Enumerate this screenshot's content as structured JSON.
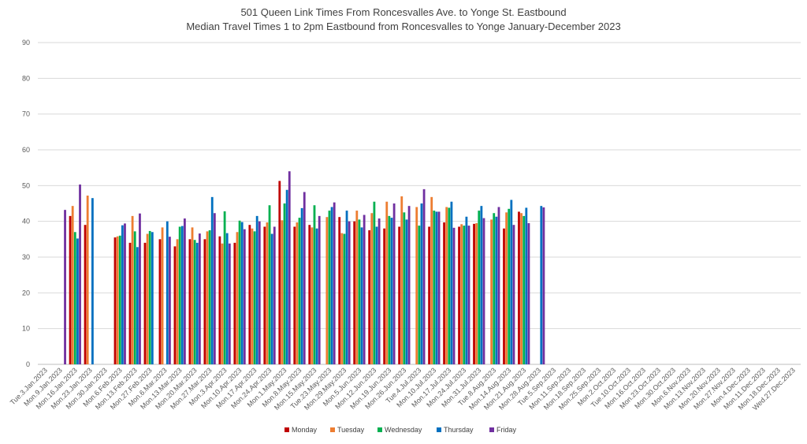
{
  "chart_data": {
    "type": "bar",
    "title": "501 Queen Link Times From Roncesvalles Ave. to Yonge St. Eastbound",
    "subtitle": "Median Travel Times 1 to 2pm Eastbound from Roncesvalles to Yonge January-December 2023",
    "xlabel": "",
    "ylabel": "",
    "ylim": [
      0,
      90
    ],
    "yticks": [
      0,
      10,
      20,
      30,
      40,
      50,
      60,
      70,
      80,
      90
    ],
    "grid": true,
    "legend_position": "bottom",
    "categories": [
      "Tue.3.Jan.2023",
      "Mon.9.Jan.2023",
      "Mon.16.Jan.2023",
      "Mon.23.Jan.2023",
      "Mon.30.Jan.2023",
      "Mon.6.Feb.2023",
      "Mon.13.Feb.2023",
      "Mon.27.Feb.2023",
      "Mon.6.Mar.2023",
      "Mon.13.Mar.2023",
      "Mon.20.Mar.2023",
      "Mon.27.Mar.2023",
      "Mon.3.Apr.2023",
      "Mon.10.Apr.2023",
      "Mon.17.Apr.2023",
      "Mon.24.Apr.2023",
      "Mon.1.May.2023",
      "Mon.8.May.2023",
      "Mon.15.May.2023",
      "Tue.23.May.2023",
      "Mon.29.May.2023",
      "Mon.5.Jun.2023",
      "Mon.12.Jun.2023",
      "Mon.19.Jun.2023",
      "Mon.26.Jun.2023",
      "Tue.4.Jul.2023",
      "Mon.10.Jul.2023",
      "Mon.17.Jul.2023",
      "Mon.24.Jul.2023",
      "Mon.31.Jul.2023",
      "Tue.8.Aug.2023",
      "Mon.14.Aug.2023",
      "Mon.21.Aug.2023",
      "Mon.28.Aug.2023",
      "Tue.5.Sep.2023",
      "Mon.11.Sep.2023",
      "Mon.18.Sep.2023",
      "Mon.25.Sep.2023",
      "Mon.2.Oct.2023",
      "Tue.10.Oct.2023",
      "Mon.16.Oct.2023",
      "Mon.23.Oct.2023",
      "Mon.30.Oct.2023",
      "Mon.6.Nov.2023",
      "Mon.13.Nov.2023",
      "Mon.20.Nov.2023",
      "Mon.27.Nov.2023",
      "Mon.4.Dec.2023",
      "Mon.11.Dec.2023",
      "Mon.18.Dec.2023",
      "Wed.27.Dec.2023"
    ],
    "series": [
      {
        "name": "Monday",
        "color": "#c00000",
        "values": [
          null,
          null,
          41.5,
          39,
          null,
          35.5,
          34,
          34,
          35,
          33,
          35,
          35,
          35.8,
          34,
          39,
          38.5,
          51.3,
          38.5,
          39,
          null,
          41.2,
          40,
          37.5,
          38,
          38.5,
          null,
          38.5,
          39.7,
          38.5,
          39.3,
          null,
          38,
          42.7,
          null,
          null,
          null,
          null,
          null,
          null,
          null,
          null,
          null,
          null,
          null,
          null,
          null,
          null,
          null,
          null,
          null,
          null
        ]
      },
      {
        "name": "Tuesday",
        "color": "#ed7d31",
        "values": [
          null,
          null,
          44.3,
          47.2,
          null,
          35.8,
          41.5,
          36.5,
          38.3,
          35,
          38.3,
          37.2,
          33.8,
          37,
          38,
          39.7,
          40.3,
          39.7,
          38.3,
          41.2,
          36.7,
          43,
          42.3,
          45.5,
          47,
          44,
          46.8,
          44,
          39.2,
          39.5,
          40.5,
          42.5,
          42.3,
          null,
          null,
          null,
          null,
          null,
          null,
          null,
          null,
          null,
          null,
          null,
          null,
          null,
          null,
          null,
          null,
          null,
          null
        ]
      },
      {
        "name": "Wednesday",
        "color": "#00b050",
        "values": [
          null,
          null,
          37,
          null,
          null,
          36,
          37.2,
          37.3,
          null,
          38.5,
          34.8,
          37.5,
          42.8,
          40.2,
          37.2,
          44.5,
          45,
          41,
          44.5,
          43,
          36.5,
          40.5,
          45.5,
          41.5,
          42.5,
          38.8,
          43,
          43.8,
          38.8,
          43,
          42.3,
          43.5,
          41.5,
          null,
          null,
          null,
          null,
          null,
          null,
          null,
          null,
          null,
          null,
          null,
          null,
          null,
          null,
          null,
          null,
          null,
          null
        ]
      },
      {
        "name": "Thursday",
        "color": "#0070c0",
        "values": [
          null,
          null,
          35.2,
          46.5,
          null,
          38.9,
          32.8,
          37,
          40,
          38.7,
          34,
          46.8,
          36.7,
          39.8,
          41.5,
          36.5,
          48.8,
          43.7,
          38,
          44,
          43,
          38.3,
          38.5,
          41,
          40.5,
          45,
          42.7,
          45.5,
          41.3,
          44.3,
          41.3,
          46,
          43.8,
          44.3,
          null,
          null,
          null,
          null,
          null,
          null,
          null,
          null,
          null,
          null,
          null,
          null,
          null,
          null,
          null,
          null,
          null
        ]
      },
      {
        "name": "Friday",
        "color": "#7030a0",
        "values": [
          null,
          43.2,
          50.3,
          null,
          null,
          39.4,
          42.2,
          null,
          35.7,
          40.8,
          36.6,
          42.3,
          33.8,
          37.8,
          40,
          38.5,
          54,
          48.2,
          41.5,
          45.3,
          40,
          41.8,
          40.8,
          45,
          44.3,
          49,
          42.7,
          38.2,
          38.8,
          40.9,
          44,
          39,
          39.5,
          43.9,
          null,
          null,
          null,
          null,
          null,
          null,
          null,
          null,
          null,
          null,
          null,
          null,
          null,
          null,
          null,
          null,
          null
        ]
      }
    ]
  }
}
